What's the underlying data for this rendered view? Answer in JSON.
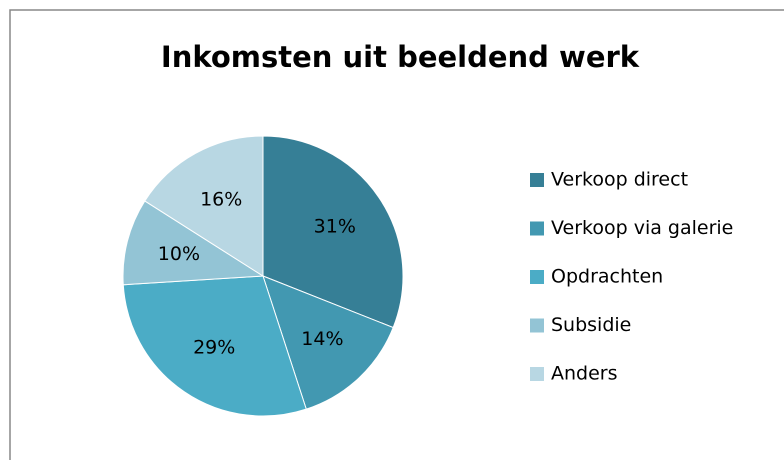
{
  "chart_data": {
    "type": "pie",
    "title": "Inkomsten uit beeldend werk",
    "categories": [
      "Verkoop direct",
      "Verkoop via galerie",
      "Opdrachten",
      "Subsidie",
      "Anders"
    ],
    "values": [
      31,
      14,
      29,
      10,
      16
    ],
    "value_labels": [
      "31%",
      "14%",
      "29%",
      "10%",
      "16%"
    ],
    "colors": [
      "#367f96",
      "#4298b1",
      "#4bacc6",
      "#93c4d5",
      "#b8d7e3"
    ],
    "legend": "right"
  }
}
